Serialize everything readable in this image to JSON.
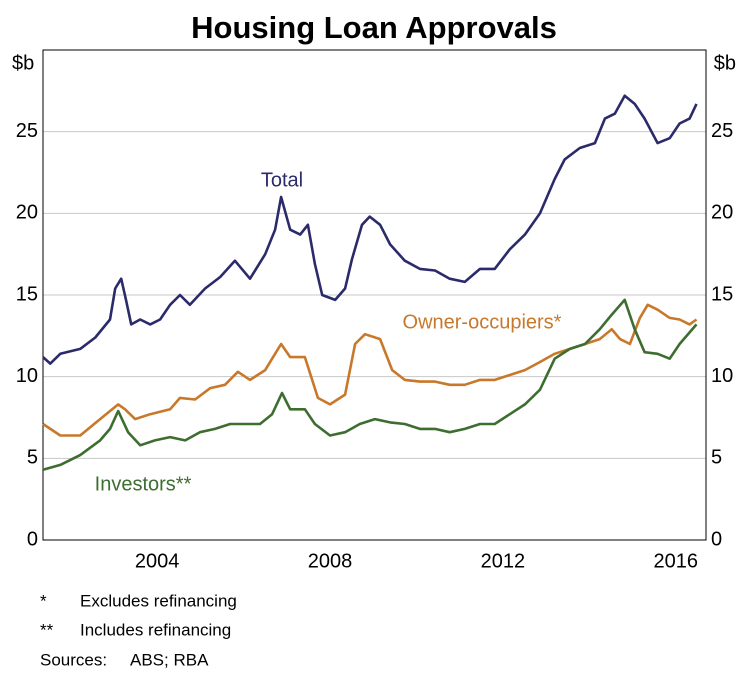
{
  "chart_data": {
    "type": "line",
    "title": "Housing Loan Approvals",
    "y_label": "$b",
    "y2_label": "$b",
    "xlim": [
      2001.86,
      2017.2
    ],
    "xticks": [
      {
        "value": 2004.5,
        "label": "2004"
      },
      {
        "value": 2008.5,
        "label": "2008"
      },
      {
        "value": 2012.5,
        "label": "2012"
      },
      {
        "value": 2016.5,
        "label": "2016"
      }
    ],
    "ylim": [
      0,
      30
    ],
    "yticks": [
      0,
      5,
      10,
      15,
      20,
      25
    ],
    "y2lim": [
      0,
      30
    ],
    "y2ticks": [
      0,
      5,
      10,
      15,
      20,
      25
    ],
    "grid": true,
    "series": [
      {
        "name": "Total",
        "color": "#2b2a6b",
        "x": [
          2001.86,
          2002.03,
          2002.26,
          2002.72,
          2003.07,
          2003.41,
          2003.53,
          2003.67,
          2003.78,
          2003.9,
          2004.11,
          2004.34,
          2004.57,
          2004.8,
          2005.03,
          2005.26,
          2005.61,
          2005.96,
          2006.3,
          2006.65,
          2007.0,
          2007.23,
          2007.37,
          2007.58,
          2007.81,
          2007.99,
          2008.15,
          2008.32,
          2008.62,
          2008.85,
          2009.01,
          2009.24,
          2009.42,
          2009.66,
          2009.89,
          2010.23,
          2010.58,
          2010.93,
          2011.27,
          2011.62,
          2011.97,
          2012.31,
          2012.66,
          2013.01,
          2013.36,
          2013.7,
          2013.93,
          2014.28,
          2014.63,
          2014.86,
          2015.09,
          2015.32,
          2015.55,
          2015.78,
          2016.08,
          2016.36,
          2016.59,
          2016.82,
          2016.98
        ],
        "values": [
          11.2,
          10.8,
          11.4,
          11.7,
          12.4,
          13.5,
          15.4,
          16.0,
          14.7,
          13.2,
          13.5,
          13.2,
          13.5,
          14.4,
          15.0,
          14.4,
          15.4,
          16.1,
          17.1,
          16.0,
          17.5,
          19.0,
          21.0,
          19.0,
          18.7,
          19.3,
          16.9,
          15.0,
          14.7,
          15.4,
          17.2,
          19.3,
          19.8,
          19.3,
          18.1,
          17.1,
          16.6,
          16.5,
          16.0,
          15.8,
          16.6,
          16.6,
          17.8,
          18.7,
          20.0,
          22.1,
          23.3,
          24.0,
          24.3,
          25.8,
          26.1,
          27.2,
          26.7,
          25.8,
          24.3,
          24.6,
          25.5,
          25.8,
          26.7
        ]
      },
      {
        "name": "Owner-occupiers*",
        "color": "#c8782a",
        "x": [
          2001.86,
          2002.26,
          2002.72,
          2003.18,
          2003.6,
          2003.76,
          2003.99,
          2004.34,
          2004.8,
          2005.03,
          2005.38,
          2005.73,
          2006.07,
          2006.37,
          2006.65,
          2007.0,
          2007.23,
          2007.37,
          2007.58,
          2007.92,
          2008.22,
          2008.5,
          2008.85,
          2009.08,
          2009.31,
          2009.66,
          2009.94,
          2010.23,
          2010.58,
          2010.93,
          2011.27,
          2011.62,
          2011.97,
          2012.31,
          2012.66,
          2013.01,
          2013.36,
          2013.7,
          2014.05,
          2014.4,
          2014.74,
          2015.02,
          2015.21,
          2015.44,
          2015.67,
          2015.85,
          2016.08,
          2016.36,
          2016.59,
          2016.82,
          2016.98
        ],
        "values": [
          7.1,
          6.4,
          6.4,
          7.4,
          8.3,
          8.0,
          7.4,
          7.7,
          8.0,
          8.7,
          8.6,
          9.3,
          9.5,
          10.3,
          9.8,
          10.4,
          11.4,
          12.0,
          11.2,
          11.2,
          8.7,
          8.3,
          8.9,
          12.0,
          12.6,
          12.3,
          10.4,
          9.8,
          9.7,
          9.7,
          9.5,
          9.5,
          9.8,
          9.8,
          10.1,
          10.4,
          10.9,
          11.4,
          11.7,
          12.0,
          12.3,
          12.9,
          12.3,
          12.0,
          13.6,
          14.4,
          14.1,
          13.6,
          13.5,
          13.2,
          13.5
        ]
      },
      {
        "name": "Investors**",
        "color": "#3d6e30",
        "x": [
          2001.86,
          2002.26,
          2002.72,
          2003.18,
          2003.41,
          2003.6,
          2003.83,
          2004.11,
          2004.45,
          2004.8,
          2005.15,
          2005.49,
          2005.84,
          2006.19,
          2006.53,
          2006.88,
          2007.16,
          2007.39,
          2007.58,
          2007.92,
          2008.15,
          2008.5,
          2008.85,
          2009.19,
          2009.54,
          2009.89,
          2010.23,
          2010.58,
          2010.93,
          2011.27,
          2011.62,
          2011.97,
          2012.31,
          2012.66,
          2013.01,
          2013.36,
          2013.7,
          2014.05,
          2014.4,
          2014.74,
          2015.02,
          2015.32,
          2015.55,
          2015.78,
          2016.08,
          2016.36,
          2016.59,
          2016.98
        ],
        "values": [
          4.3,
          4.6,
          5.2,
          6.1,
          6.8,
          7.9,
          6.6,
          5.8,
          6.1,
          6.3,
          6.1,
          6.6,
          6.8,
          7.1,
          7.1,
          7.1,
          7.7,
          9.0,
          8.0,
          8.0,
          7.1,
          6.4,
          6.6,
          7.1,
          7.4,
          7.2,
          7.1,
          6.8,
          6.8,
          6.6,
          6.8,
          7.1,
          7.1,
          7.7,
          8.3,
          9.2,
          11.1,
          11.7,
          12.0,
          12.9,
          13.8,
          14.7,
          12.9,
          11.5,
          11.4,
          11.1,
          12.0,
          13.2
        ]
      }
    ],
    "notes": [
      {
        "mark": "*",
        "text": "Excludes refinancing"
      },
      {
        "mark": "**",
        "text": "Includes refinancing"
      }
    ],
    "sources": {
      "label": "Sources:",
      "text": "ABS; RBA"
    }
  }
}
